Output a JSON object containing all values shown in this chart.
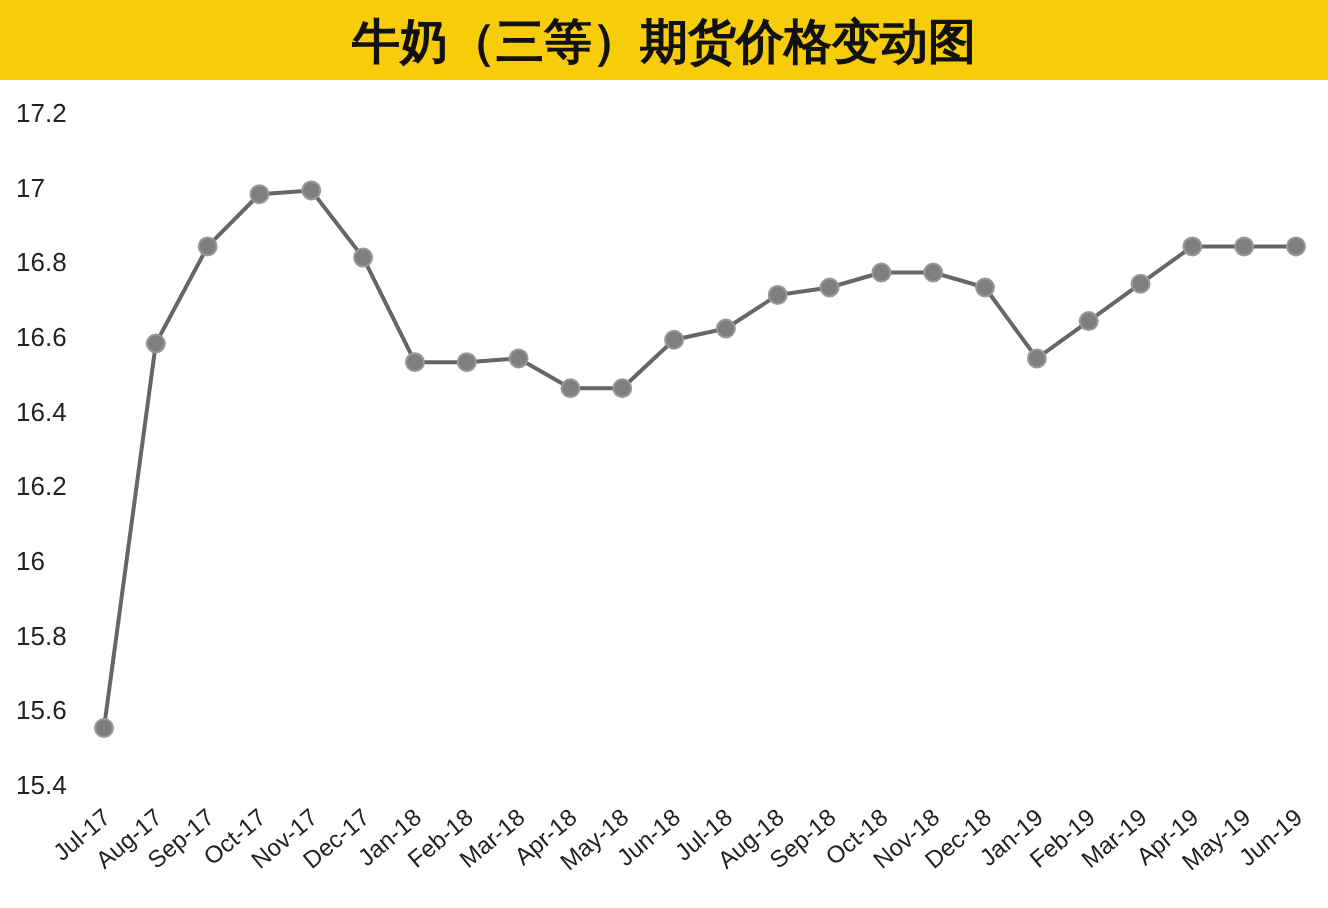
{
  "chart_data": {
    "type": "line",
    "title": "牛奶（三等）期货价格变动图",
    "categories": [
      "Jul-17",
      "Aug-17",
      "Sep-17",
      "Oct-17",
      "Nov-17",
      "Dec-17",
      "Jan-18",
      "Feb-18",
      "Mar-18",
      "Apr-18",
      "May-18",
      "Jun-18",
      "Jul-18",
      "Aug-18",
      "Sep-18",
      "Oct-18",
      "Nov-18",
      "Dec-18",
      "Jan-19",
      "Feb-19",
      "Mar-19",
      "Apr-19",
      "May-19",
      "Jun-19"
    ],
    "values": [
      15.55,
      16.58,
      16.84,
      16.98,
      16.99,
      16.81,
      16.53,
      16.53,
      16.54,
      16.46,
      16.46,
      16.59,
      16.62,
      16.71,
      16.73,
      16.77,
      16.77,
      16.73,
      16.54,
      16.64,
      16.74,
      16.84,
      16.84,
      16.84
    ],
    "color": "#7f7f7f",
    "marker": "circle",
    "ylim": [
      15.4,
      17.2
    ],
    "yticks": [
      15.4,
      15.6,
      15.8,
      16,
      16.2,
      16.4,
      16.6,
      16.8,
      17,
      17.2
    ]
  }
}
